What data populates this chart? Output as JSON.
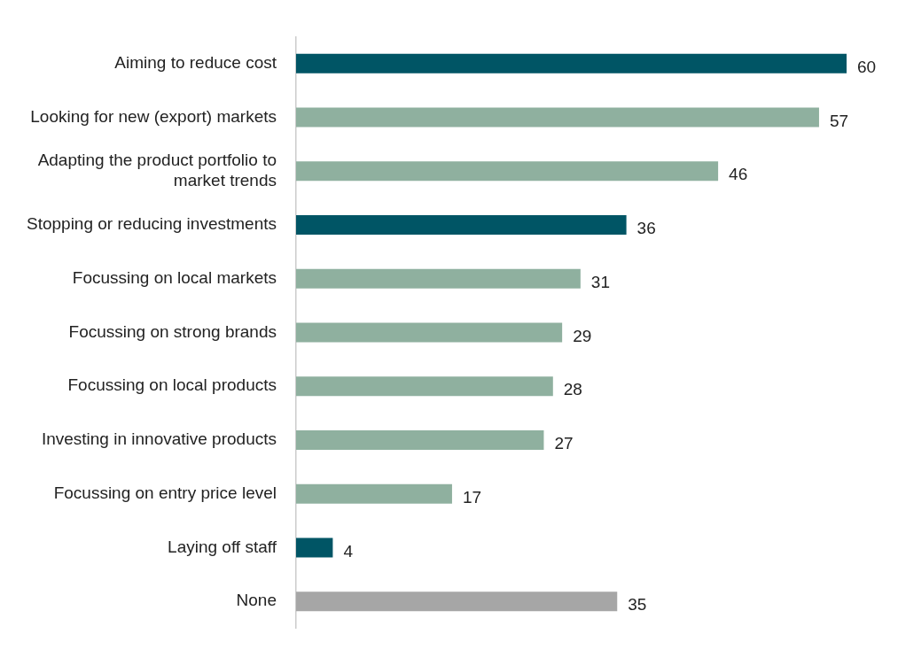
{
  "chart_data": {
    "type": "bar",
    "orientation": "horizontal",
    "categories": [
      "Aiming to reduce cost",
      "Looking for new (export) markets",
      "Adapting the product portfolio to market trends",
      "Stopping or reducing investments",
      "Focussing on local markets",
      "Focussing on strong brands",
      "Focussing on local products",
      "Investing in innovative products",
      "Focussing on entry price level",
      "Laying off staff",
      "None"
    ],
    "values": [
      60,
      57,
      46,
      36,
      31,
      29,
      28,
      27,
      17,
      4,
      35
    ],
    "colors": [
      "#005565",
      "#8fb09f",
      "#8fb09f",
      "#005565",
      "#8fb09f",
      "#8fb09f",
      "#8fb09f",
      "#8fb09f",
      "#8fb09f",
      "#005565",
      "#a6a6a6"
    ],
    "data_labels": true,
    "legend": false
  }
}
